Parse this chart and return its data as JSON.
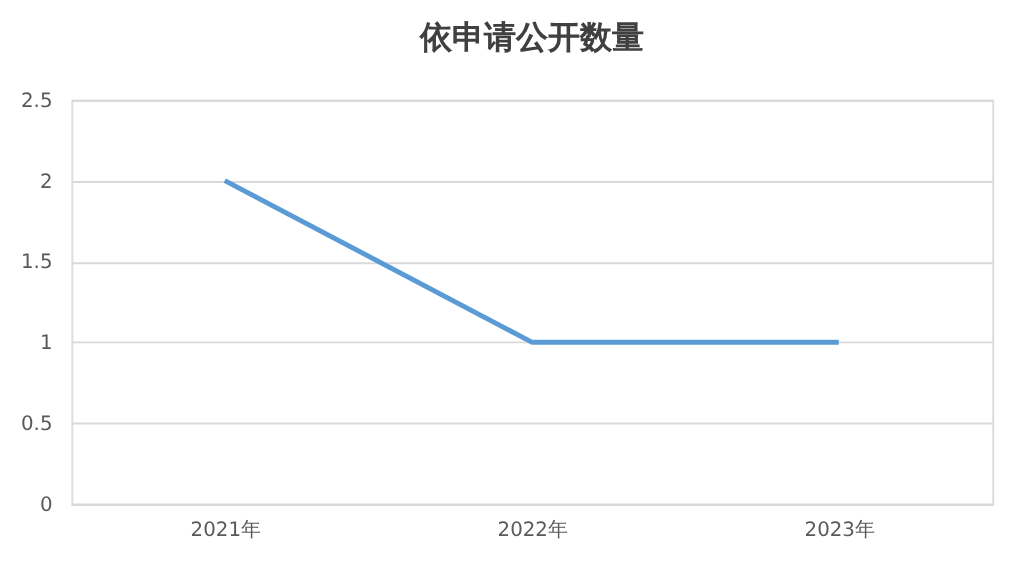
{
  "chart_data": {
    "type": "line",
    "title": "依申请公开数量",
    "categories": [
      "2021年",
      "2022年",
      "2023年"
    ],
    "series": [
      {
        "color": "#5b9bd5",
        "values": [
          2,
          1,
          1
        ]
      }
    ],
    "ylim": [
      0,
      2.5
    ],
    "yticks": [
      0,
      0.5,
      1,
      1.5,
      2,
      2.5
    ],
    "grid": "y",
    "marker": "none",
    "line_style": "solid"
  }
}
